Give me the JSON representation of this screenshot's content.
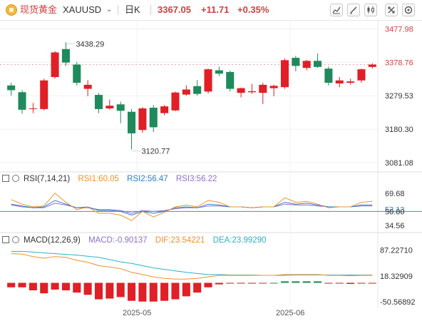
{
  "header": {
    "symbol_name": "现货黄金",
    "symbol_code": "XAUUSD",
    "interval": "日K",
    "price": "3367.05",
    "change": "+11.71",
    "change_pct": "+0.35%"
  },
  "toolbar": [
    "indicator-icon",
    "edit-icon",
    "candle-type-icon",
    "fullscreen-icon",
    "settings-icon"
  ],
  "colors": {
    "up": "#e01f26",
    "down": "#1f8a5b",
    "accent": "#d23f3f",
    "rsi1": "#f0912c",
    "rsi2": "#2c7fc8",
    "rsi3": "#8f6fcf",
    "macd": "#8f6fcf",
    "dif": "#f0912c",
    "dea": "#2cb3c6"
  },
  "price_axis": {
    "labels": [
      "3477.98",
      "3378.76",
      "3279.53",
      "3180.30",
      "3081.08"
    ],
    "current": "3378.76"
  },
  "annotations": {
    "high": "3438.29",
    "low": "3120.77"
  },
  "rsi": {
    "title": "RSI(7,14,21)",
    "rsi1": "RSI1:60.05",
    "rsi2": "RSI2:56.47",
    "rsi3": "RSI3:56.22",
    "axis": [
      "69.68",
      "52.13",
      "50.00",
      "34.56"
    ]
  },
  "macd": {
    "title": "MACD(12,26,9)",
    "macd": "MACD:-0.90137",
    "dif": "DIF:23.54221",
    "dea": "DEA:23.99290",
    "axis": [
      "87.22710",
      "18.32909",
      "-50.56892"
    ]
  },
  "time_axis": [
    "2025-05",
    "2025-06"
  ],
  "chart_data": {
    "type": "candlestick",
    "candles": [
      {
        "o": 3310,
        "c": 3296,
        "h": 3318,
        "l": 3280
      },
      {
        "o": 3290,
        "c": 3238,
        "h": 3296,
        "l": 3226
      },
      {
        "o": 3240,
        "c": 3242,
        "h": 3258,
        "l": 3228
      },
      {
        "o": 3240,
        "c": 3325,
        "h": 3330,
        "l": 3236
      },
      {
        "o": 3335,
        "c": 3408,
        "h": 3412,
        "l": 3330
      },
      {
        "o": 3418,
        "c": 3378,
        "h": 3438,
        "l": 3368
      },
      {
        "o": 3372,
        "c": 3318,
        "h": 3380,
        "l": 3310
      },
      {
        "o": 3300,
        "c": 3312,
        "h": 3326,
        "l": 3278
      },
      {
        "o": 3282,
        "c": 3240,
        "h": 3288,
        "l": 3228
      },
      {
        "o": 3242,
        "c": 3250,
        "h": 3268,
        "l": 3238
      },
      {
        "o": 3254,
        "c": 3235,
        "h": 3262,
        "l": 3198
      },
      {
        "o": 3232,
        "c": 3168,
        "h": 3240,
        "l": 3120
      },
      {
        "o": 3178,
        "c": 3242,
        "h": 3246,
        "l": 3170
      },
      {
        "o": 3244,
        "c": 3186,
        "h": 3252,
        "l": 3172
      },
      {
        "o": 3228,
        "c": 3248,
        "h": 3252,
        "l": 3222
      },
      {
        "o": 3236,
        "c": 3289,
        "h": 3292,
        "l": 3234
      },
      {
        "o": 3283,
        "c": 3298,
        "h": 3310,
        "l": 3280
      },
      {
        "o": 3308,
        "c": 3285,
        "h": 3326,
        "l": 3280
      },
      {
        "o": 3292,
        "c": 3358,
        "h": 3360,
        "l": 3286
      },
      {
        "o": 3355,
        "c": 3345,
        "h": 3366,
        "l": 3338
      },
      {
        "o": 3350,
        "c": 3300,
        "h": 3354,
        "l": 3292
      },
      {
        "o": 3288,
        "c": 3302,
        "h": 3304,
        "l": 3275
      },
      {
        "o": 3290,
        "c": 3293,
        "h": 3315,
        "l": 3285
      },
      {
        "o": 3288,
        "c": 3312,
        "h": 3318,
        "l": 3255
      },
      {
        "o": 3302,
        "c": 3309,
        "h": 3312,
        "l": 3278
      },
      {
        "o": 3305,
        "c": 3385,
        "h": 3390,
        "l": 3300
      },
      {
        "o": 3392,
        "c": 3368,
        "h": 3398,
        "l": 3352
      },
      {
        "o": 3362,
        "c": 3383,
        "h": 3386,
        "l": 3355
      },
      {
        "o": 3383,
        "c": 3365,
        "h": 3405,
        "l": 3362
      },
      {
        "o": 3360,
        "c": 3318,
        "h": 3366,
        "l": 3310
      },
      {
        "o": 3316,
        "c": 3325,
        "h": 3335,
        "l": 3305
      },
      {
        "o": 3318,
        "c": 3322,
        "h": 3330,
        "l": 3312
      },
      {
        "o": 3325,
        "c": 3358,
        "h": 3360,
        "l": 3318
      },
      {
        "o": 3365,
        "c": 3372,
        "h": 3376,
        "l": 3360
      }
    ],
    "rsi1": [
      63,
      58,
      55,
      56,
      70,
      60,
      52,
      55,
      48,
      48,
      46,
      40,
      50,
      44,
      49,
      55,
      57,
      55,
      62,
      60,
      55,
      55,
      54,
      55,
      55,
      65,
      60,
      61,
      58,
      54,
      55,
      55,
      60,
      61
    ],
    "rsi2": [
      58,
      56,
      54,
      55,
      62,
      58,
      54,
      55,
      51,
      51,
      50,
      46,
      50,
      48,
      50,
      54,
      55,
      54,
      58,
      57,
      55,
      55,
      54,
      55,
      55,
      60,
      58,
      59,
      57,
      55,
      55,
      55,
      57,
      57
    ],
    "rsi3": [
      57,
      55,
      54,
      54,
      59,
      57,
      54,
      54,
      52,
      52,
      51,
      48,
      51,
      50,
      51,
      53,
      54,
      54,
      56,
      56,
      55,
      55,
      54,
      55,
      55,
      58,
      57,
      57,
      56,
      55,
      55,
      55,
      56,
      56
    ],
    "dif": [
      78,
      77,
      70,
      66,
      70,
      68,
      60,
      55,
      46,
      42,
      38,
      28,
      22,
      16,
      12,
      10,
      10,
      12,
      16,
      20,
      20,
      20,
      20,
      20,
      20,
      22,
      22,
      22,
      22,
      20,
      20,
      19,
      20,
      20
    ],
    "dea": [
      84,
      84,
      82,
      80,
      78,
      76,
      74,
      71,
      68,
      62,
      56,
      52,
      46,
      40,
      36,
      32,
      28,
      25,
      22,
      22,
      21,
      21,
      21,
      20,
      20,
      20,
      21,
      21,
      21,
      21,
      21,
      21,
      21,
      21
    ],
    "macd": [
      -12,
      -12,
      -20,
      -28,
      -18,
      -20,
      -26,
      -32,
      -44,
      -42,
      -38,
      -48,
      -50,
      -50,
      -48,
      -44,
      -36,
      -26,
      -12,
      -4,
      -2,
      -2,
      -2,
      -1,
      0,
      4,
      4,
      4,
      4,
      -2,
      -2,
      -3,
      -2,
      -2
    ],
    "price_range": [
      3060,
      3500
    ],
    "rsi_range": [
      30,
      80
    ],
    "macd_range": [
      -60,
      100
    ],
    "x_labels": {
      "2025-05": 11.5,
      "2025-06": 25.5
    }
  }
}
